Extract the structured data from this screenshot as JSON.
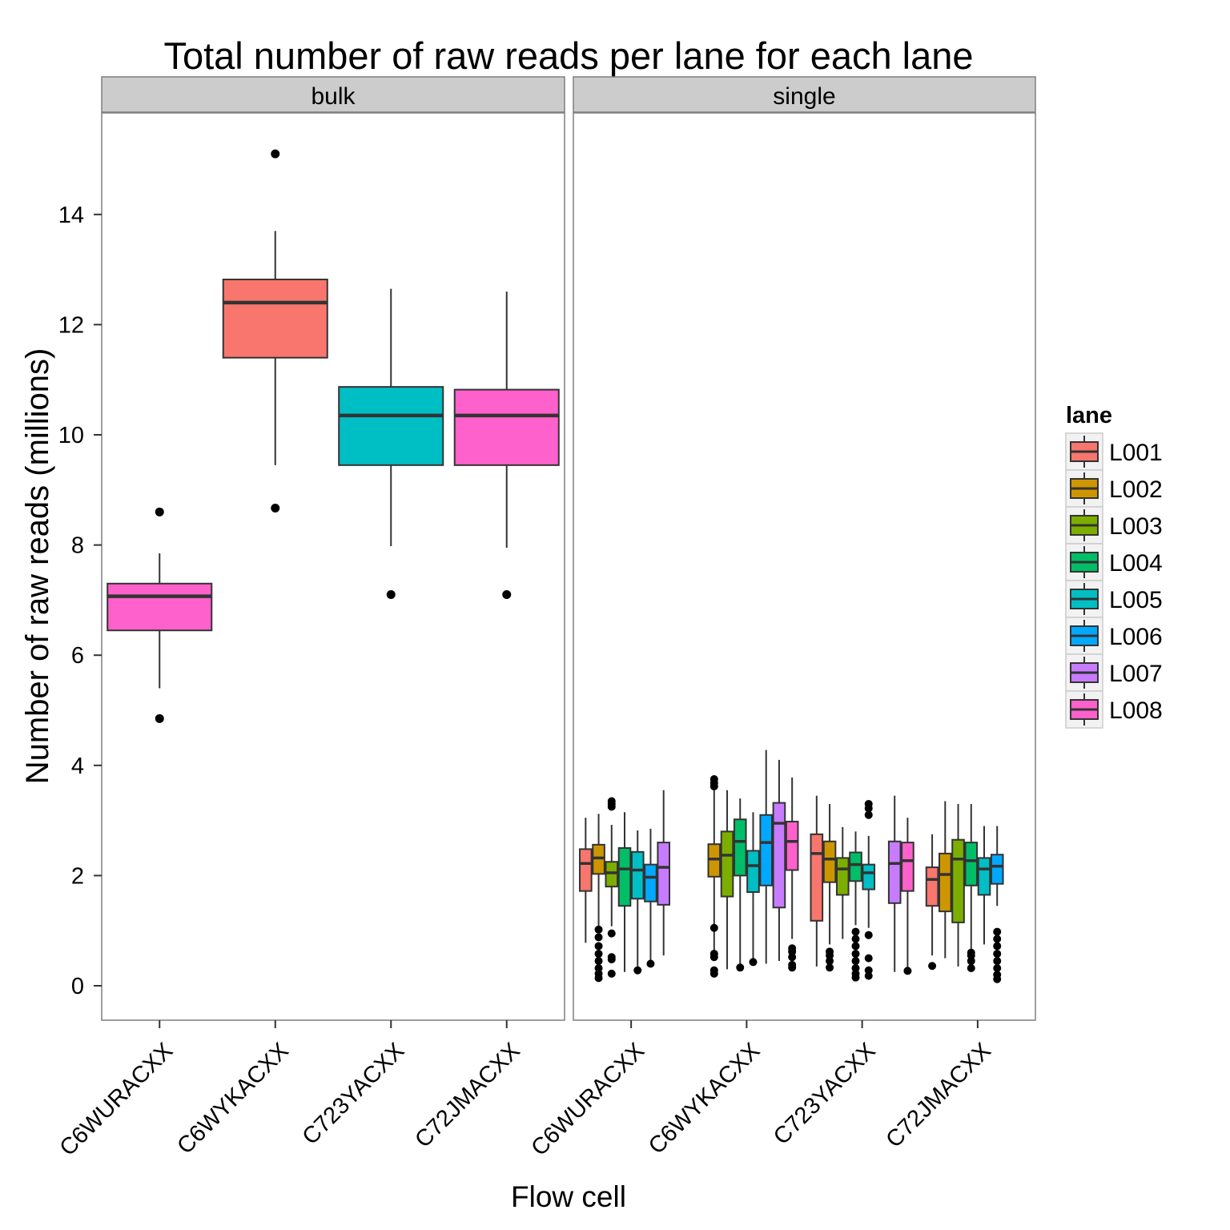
{
  "chart_data": {
    "type": "boxplot",
    "title": "Total number of raw reads per lane for each lane",
    "xlabel": "Flow cell",
    "ylabel": "Number of raw reads (millions)",
    "ylim": [
      -0.6,
      15.9
    ],
    "y_ticks": [
      "0",
      "2",
      "4",
      "6",
      "8",
      "10",
      "12",
      "14"
    ],
    "categories": [
      "C6WURACXX",
      "C6WYKACXX",
      "C723YACXX",
      "C72JMACXX"
    ],
    "legend": {
      "title": "lane",
      "position": "right",
      "items": [
        {
          "label": "L001",
          "color": "#F8766D"
        },
        {
          "label": "L002",
          "color": "#CD9600"
        },
        {
          "label": "L003",
          "color": "#7CAE00"
        },
        {
          "label": "L004",
          "color": "#00BE67"
        },
        {
          "label": "L005",
          "color": "#00BFC4"
        },
        {
          "label": "L006",
          "color": "#00A9FF"
        },
        {
          "label": "L007",
          "color": "#C77CFF"
        },
        {
          "label": "L008",
          "color": "#FF61CC"
        }
      ]
    },
    "panels": [
      {
        "name": "bulk",
        "boxes": [
          {
            "flowcell": "C6WURACXX",
            "lane": "L008",
            "whisker_low": 5.4,
            "q1": 6.45,
            "median": 7.07,
            "q3": 7.3,
            "whisker_high": 7.85,
            "outliers": [
              8.6,
              4.85
            ]
          },
          {
            "flowcell": "C6WYKACXX",
            "lane": "L001",
            "whisker_low": 9.45,
            "q1": 11.4,
            "median": 12.4,
            "q3": 12.82,
            "whisker_high": 13.7,
            "outliers": [
              15.1,
              8.67
            ]
          },
          {
            "flowcell": "C723YACXX",
            "lane": "L005",
            "whisker_low": 7.98,
            "q1": 9.45,
            "median": 10.35,
            "q3": 10.87,
            "whisker_high": 12.65,
            "outliers": [
              7.1
            ]
          },
          {
            "flowcell": "C72JMACXX",
            "lane": "L008",
            "whisker_low": 7.95,
            "q1": 9.45,
            "median": 10.35,
            "q3": 10.82,
            "whisker_high": 12.6,
            "outliers": [
              7.1
            ]
          }
        ]
      },
      {
        "name": "single",
        "boxes": [
          {
            "flowcell": "C6WURACXX",
            "lane": "L001",
            "whisker_low": 0.78,
            "q1": 1.72,
            "median": 2.22,
            "q3": 2.48,
            "whisker_high": 3.05,
            "outliers": []
          },
          {
            "flowcell": "C6WURACXX",
            "lane": "L002",
            "whisker_low": 1.0,
            "q1": 2.03,
            "median": 2.32,
            "q3": 2.56,
            "whisker_high": 3.12,
            "outliers": [
              1.02,
              0.88,
              0.72,
              0.58,
              0.45,
              0.32,
              0.22,
              0.14
            ]
          },
          {
            "flowcell": "C6WURACXX",
            "lane": "L003",
            "whisker_low": 1.08,
            "q1": 1.8,
            "median": 2.05,
            "q3": 2.25,
            "whisker_high": 2.92,
            "outliers": [
              3.35,
              3.3,
              3.25,
              0.95,
              0.52,
              0.48,
              0.22
            ]
          },
          {
            "flowcell": "C6WURACXX",
            "lane": "L004",
            "whisker_low": 0.25,
            "q1": 1.45,
            "median": 2.12,
            "q3": 2.5,
            "whisker_high": 3.15,
            "outliers": []
          },
          {
            "flowcell": "C6WURACXX",
            "lane": "L005",
            "whisker_low": 0.35,
            "q1": 1.58,
            "median": 2.1,
            "q3": 2.43,
            "whisker_high": 2.82,
            "outliers": [
              0.28
            ]
          },
          {
            "flowcell": "C6WURACXX",
            "lane": "L006",
            "whisker_low": 0.42,
            "q1": 1.53,
            "median": 1.97,
            "q3": 2.2,
            "whisker_high": 2.85,
            "outliers": [
              0.4
            ]
          },
          {
            "flowcell": "C6WURACXX",
            "lane": "L007",
            "whisker_low": 0.55,
            "q1": 1.47,
            "median": 2.15,
            "q3": 2.6,
            "whisker_high": 3.55,
            "outliers": []
          },
          {
            "flowcell": "C6WYKACXX",
            "lane": "L002",
            "whisker_low": 0.6,
            "q1": 1.98,
            "median": 2.3,
            "q3": 2.57,
            "whisker_high": 3.58,
            "outliers": [
              3.75,
              3.68,
              3.62,
              1.05,
              0.58,
              0.52,
              0.28,
              0.22
            ]
          },
          {
            "flowcell": "C6WYKACXX",
            "lane": "L003",
            "whisker_low": 0.3,
            "q1": 1.62,
            "median": 2.37,
            "q3": 2.8,
            "whisker_high": 3.55,
            "outliers": []
          },
          {
            "flowcell": "C6WYKACXX",
            "lane": "L004",
            "whisker_low": 0.35,
            "q1": 2.0,
            "median": 2.62,
            "q3": 3.02,
            "whisker_high": 3.4,
            "outliers": [
              0.33
            ]
          },
          {
            "flowcell": "C6WYKACXX",
            "lane": "L005",
            "whisker_low": 0.45,
            "q1": 1.7,
            "median": 2.18,
            "q3": 2.45,
            "whisker_high": 3.15,
            "outliers": [
              0.43
            ]
          },
          {
            "flowcell": "C6WYKACXX",
            "lane": "L006",
            "whisker_low": 0.4,
            "q1": 1.82,
            "median": 2.6,
            "q3": 3.1,
            "whisker_high": 4.28,
            "outliers": []
          },
          {
            "flowcell": "C6WYKACXX",
            "lane": "L007",
            "whisker_low": 0.45,
            "q1": 1.42,
            "median": 2.95,
            "q3": 3.32,
            "whisker_high": 4.1,
            "outliers": []
          },
          {
            "flowcell": "C6WYKACXX",
            "lane": "L008",
            "whisker_low": 0.85,
            "q1": 2.1,
            "median": 2.62,
            "q3": 2.98,
            "whisker_high": 3.78,
            "outliers": [
              0.68,
              0.62,
              0.52,
              0.38,
              0.33
            ]
          },
          {
            "flowcell": "C723YACXX",
            "lane": "L001",
            "whisker_low": 0.35,
            "q1": 1.18,
            "median": 2.4,
            "q3": 2.75,
            "whisker_high": 3.45,
            "outliers": []
          },
          {
            "flowcell": "C723YACXX",
            "lane": "L002",
            "whisker_low": 0.75,
            "q1": 1.88,
            "median": 2.3,
            "q3": 2.62,
            "whisker_high": 3.3,
            "outliers": [
              0.62,
              0.55,
              0.45,
              0.33
            ]
          },
          {
            "flowcell": "C723YACXX",
            "lane": "L003",
            "whisker_low": 0.85,
            "q1": 1.65,
            "median": 2.12,
            "q3": 2.32,
            "whisker_high": 2.88,
            "outliers": []
          },
          {
            "flowcell": "C723YACXX",
            "lane": "L004",
            "whisker_low": 1.1,
            "q1": 1.9,
            "median": 2.2,
            "q3": 2.42,
            "whisker_high": 2.8,
            "outliers": [
              0.98,
              0.85,
              0.72,
              0.58,
              0.45,
              0.32,
              0.22,
              0.15
            ]
          },
          {
            "flowcell": "C723YACXX",
            "lane": "L005",
            "whisker_low": 1.05,
            "q1": 1.75,
            "median": 2.05,
            "q3": 2.2,
            "whisker_high": 2.72,
            "outliers": [
              3.3,
              3.22,
              3.1,
              0.92,
              0.5,
              0.28,
              0.18
            ]
          },
          {
            "flowcell": "C723YACXX",
            "lane": "L007",
            "whisker_low": 0.25,
            "q1": 1.5,
            "median": 2.22,
            "q3": 2.62,
            "whisker_high": 3.45,
            "outliers": []
          },
          {
            "flowcell": "C723YACXX",
            "lane": "L008",
            "whisker_low": 0.3,
            "q1": 1.72,
            "median": 2.27,
            "q3": 2.6,
            "whisker_high": 3.05,
            "outliers": [
              0.27
            ]
          },
          {
            "flowcell": "C72JMACXX",
            "lane": "L001",
            "whisker_low": 0.55,
            "q1": 1.45,
            "median": 1.93,
            "q3": 2.15,
            "whisker_high": 2.75,
            "outliers": [
              0.36
            ]
          },
          {
            "flowcell": "C72JMACXX",
            "lane": "L002",
            "whisker_low": 0.5,
            "q1": 1.35,
            "median": 2.02,
            "q3": 2.4,
            "whisker_high": 3.35,
            "outliers": []
          },
          {
            "flowcell": "C72JMACXX",
            "lane": "L003",
            "whisker_low": 0.35,
            "q1": 1.15,
            "median": 2.3,
            "q3": 2.65,
            "whisker_high": 3.3,
            "outliers": []
          },
          {
            "flowcell": "C72JMACXX",
            "lane": "L004",
            "whisker_low": 0.65,
            "q1": 1.82,
            "median": 2.27,
            "q3": 2.6,
            "whisker_high": 3.3,
            "outliers": [
              0.6,
              0.55,
              0.45,
              0.32
            ]
          },
          {
            "flowcell": "C72JMACXX",
            "lane": "L005",
            "whisker_low": 0.75,
            "q1": 1.65,
            "median": 2.12,
            "q3": 2.32,
            "whisker_high": 2.9,
            "outliers": []
          },
          {
            "flowcell": "C72JMACXX",
            "lane": "L006",
            "whisker_low": 1.45,
            "q1": 1.85,
            "median": 2.17,
            "q3": 2.38,
            "whisker_high": 2.9,
            "outliers": [
              0.98,
              0.85,
              0.72,
              0.58,
              0.45,
              0.32,
              0.2,
              0.12
            ]
          }
        ]
      }
    ]
  }
}
